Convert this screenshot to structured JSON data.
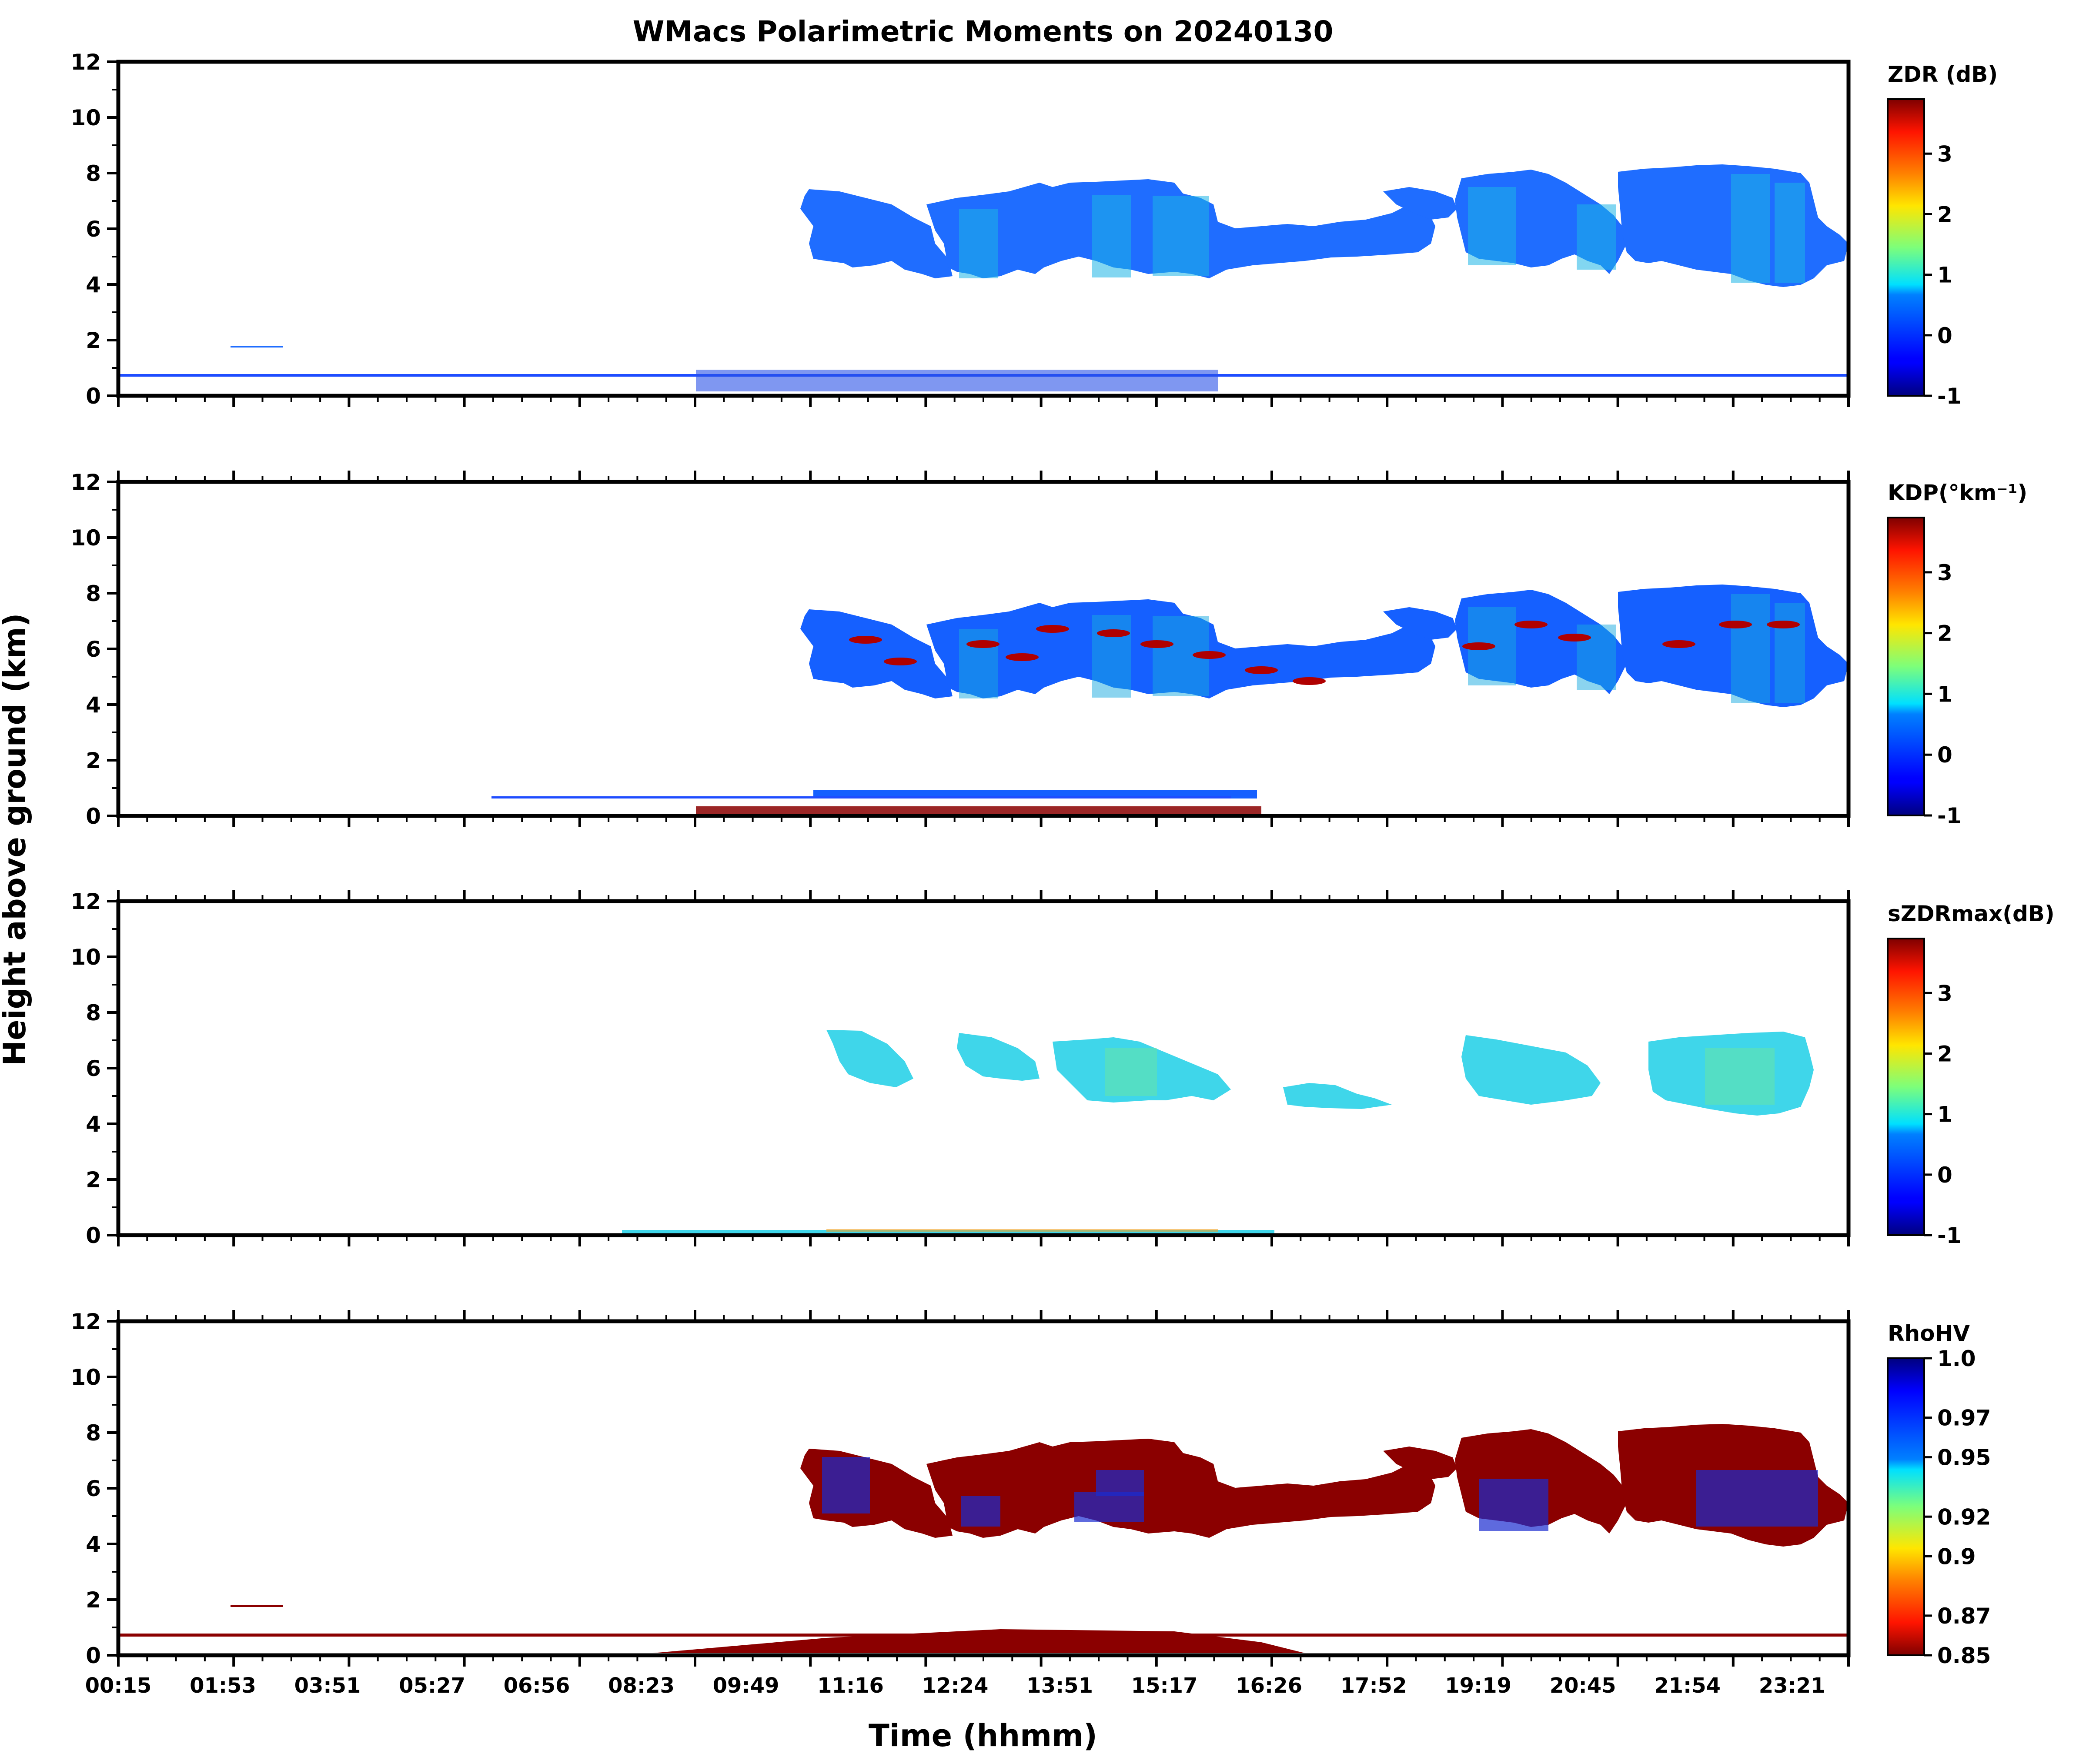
{
  "figure_title": "WMacs Polarimetric Moments on 20240130",
  "xlabel": "Time (hhmm)",
  "ylabel": "Height above ground (km)",
  "chart_data": [
    {
      "type": "heatmap",
      "panel": "ZDR",
      "colorbar_label": "ZDR (dB)",
      "colorbar_ticks": [
        "-1",
        "0",
        "1",
        "2",
        "3"
      ],
      "colorbar_range": [
        -1,
        3.9
      ],
      "colormap": "jet",
      "ylim": [
        0,
        12
      ],
      "y_ticks": [
        "0",
        "2",
        "4",
        "6",
        "8",
        "10",
        "12"
      ]
    },
    {
      "type": "heatmap",
      "panel": "KDP",
      "colorbar_label": "KDP(°km⁻¹)",
      "colorbar_ticks": [
        "-1",
        "0",
        "1",
        "2",
        "3"
      ],
      "colorbar_range": [
        -1,
        3.9
      ],
      "colormap": "jet",
      "ylim": [
        0,
        12
      ],
      "y_ticks": [
        "0",
        "2",
        "4",
        "6",
        "8",
        "10",
        "12"
      ]
    },
    {
      "type": "heatmap",
      "panel": "sZDRmax",
      "colorbar_label": "sZDRmax(dB)",
      "colorbar_ticks": [
        "-1",
        "0",
        "1",
        "2",
        "3"
      ],
      "colorbar_range": [
        -1,
        3.9
      ],
      "colormap": "jet",
      "ylim": [
        0,
        12
      ],
      "y_ticks": [
        "0",
        "2",
        "4",
        "6",
        "8",
        "10",
        "12"
      ]
    },
    {
      "type": "heatmap",
      "panel": "RhoHV",
      "colorbar_label": "RhoHV",
      "colorbar_ticks": [
        "0.85",
        "0.87",
        "0.9",
        "0.92",
        "0.95",
        "0.97",
        "1.0"
      ],
      "colorbar_range": [
        0.85,
        1.0
      ],
      "colormap": "jet_r",
      "ylim": [
        0,
        12
      ],
      "y_ticks": [
        "0",
        "2",
        "4",
        "6",
        "8",
        "10",
        "12"
      ],
      "x_ticks": [
        "00:15",
        "01:53",
        "03:51",
        "05:27",
        "06:56",
        "08:23",
        "09:49",
        "11:16",
        "12:24",
        "13:51",
        "15:17",
        "16:26",
        "17:52",
        "19:19",
        "20:45",
        "21:54",
        "23:21"
      ]
    }
  ]
}
